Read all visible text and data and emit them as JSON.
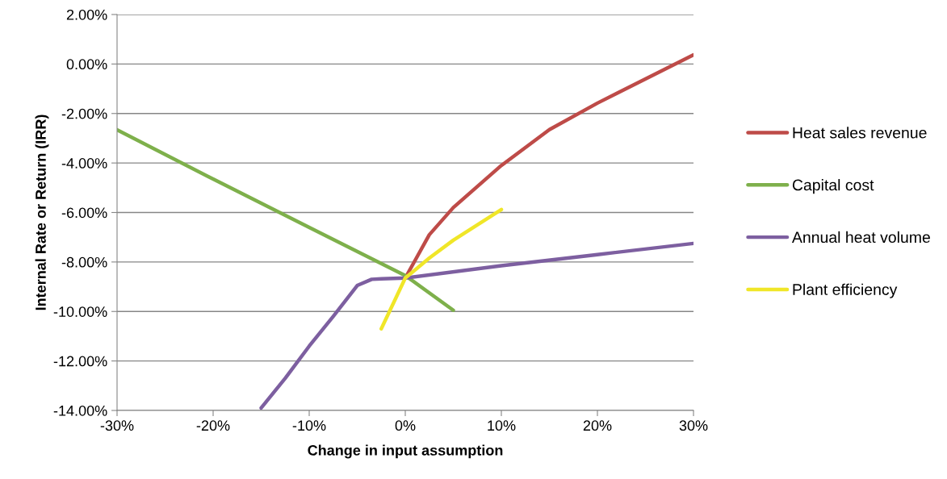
{
  "chart_data": {
    "type": "line",
    "xlabel": "Change in input assumption",
    "ylabel": "Internal Rate or Return (IRR)",
    "xlim": [
      -30,
      30
    ],
    "ylim": [
      -14,
      2
    ],
    "xticks": [
      {
        "value": -30,
        "label": "-30%"
      },
      {
        "value": -20,
        "label": "-20%"
      },
      {
        "value": -10,
        "label": "-10%"
      },
      {
        "value": 0,
        "label": "0%"
      },
      {
        "value": 10,
        "label": "10%"
      },
      {
        "value": 20,
        "label": "20%"
      },
      {
        "value": 30,
        "label": "30%"
      }
    ],
    "yticks": [
      {
        "value": 2,
        "label": "2.00%"
      },
      {
        "value": 0,
        "label": "0.00%"
      },
      {
        "value": -2,
        "label": "-2.00%"
      },
      {
        "value": -4,
        "label": "-4.00%"
      },
      {
        "value": -6,
        "label": "-6.00%"
      },
      {
        "value": -8,
        "label": "-8.00%"
      },
      {
        "value": -10,
        "label": "-10.00%"
      },
      {
        "value": -12,
        "label": "-12.00%"
      },
      {
        "value": -14,
        "label": "-14.00%"
      }
    ],
    "grid": "y",
    "legend": "right",
    "marker": "none",
    "line_style": "solid",
    "series": [
      {
        "name": "Heat sales revenue",
        "color": "#be4b48",
        "x": [
          0,
          2.5,
          5,
          10,
          15,
          20,
          30
        ],
        "values": [
          -8.65,
          -6.9,
          -5.8,
          -4.1,
          -2.65,
          -1.58,
          0.37
        ]
      },
      {
        "name": "Capital cost",
        "color": "#7eb04b",
        "x": [
          -30,
          -20,
          -10,
          0,
          5
        ],
        "values": [
          -2.66,
          -4.65,
          -6.6,
          -8.55,
          -9.95
        ]
      },
      {
        "name": "Annual heat volume",
        "color": "#7d5fa0",
        "x": [
          -15,
          -12.5,
          -10,
          -7.5,
          -5,
          -3.5,
          -2.5,
          0,
          10,
          20,
          30
        ],
        "values": [
          -13.9,
          -12.7,
          -11.4,
          -10.2,
          -8.95,
          -8.7,
          -8.68,
          -8.65,
          -8.15,
          -7.7,
          -7.25
        ]
      },
      {
        "name": "Plant efficiency",
        "color": "#f0e628",
        "x": [
          -2.5,
          -1,
          0,
          2.5,
          5,
          10
        ],
        "values": [
          -10.7,
          -9.47,
          -8.65,
          -7.84,
          -7.12,
          -5.88
        ]
      }
    ]
  }
}
